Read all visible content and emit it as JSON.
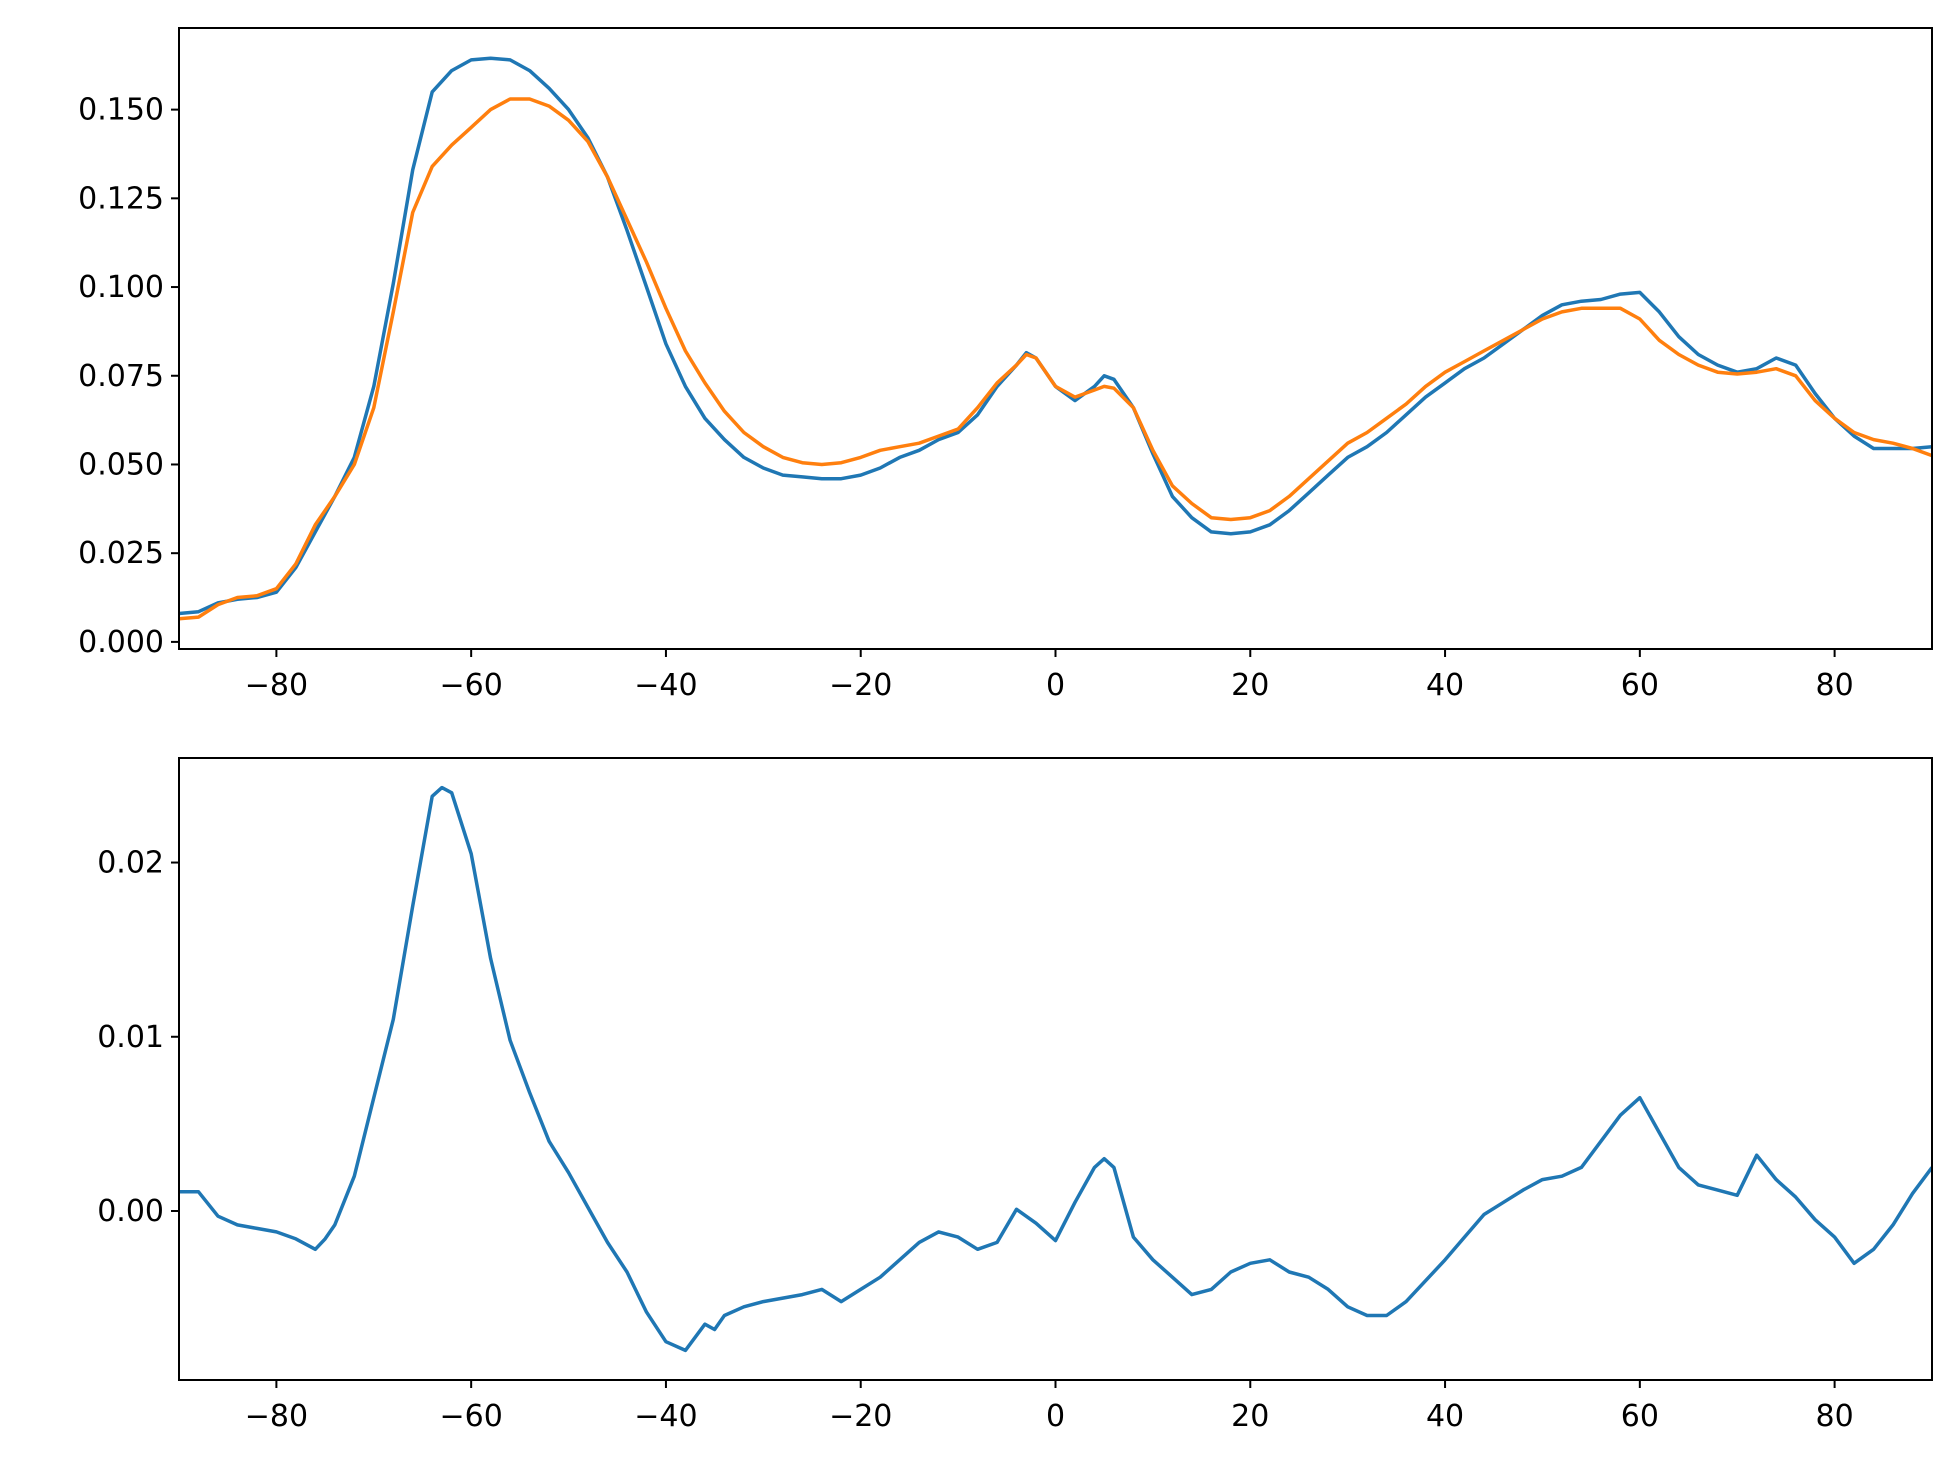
{
  "colors": {
    "series_1": "#1f77b4",
    "series_2": "#ff7f0e"
  },
  "chart_data": [
    {
      "type": "line",
      "title": "",
      "xlabel": "",
      "ylabel": "",
      "xlim": [
        -90,
        90
      ],
      "ylim": [
        -0.002,
        0.173
      ],
      "grid": false,
      "legend": "none",
      "x_ticks": [
        -80,
        -60,
        -40,
        -20,
        0,
        20,
        40,
        60,
        80
      ],
      "x_tick_labels": [
        "−80",
        "−60",
        "−40",
        "−20",
        "0",
        "20",
        "40",
        "60",
        "80"
      ],
      "y_ticks": [
        0.0,
        0.025,
        0.05,
        0.075,
        0.1,
        0.125,
        0.15
      ],
      "y_tick_labels": [
        "0.000",
        "0.025",
        "0.050",
        "0.075",
        "0.100",
        "0.125",
        "0.150"
      ],
      "series": [
        {
          "color": "#1f77b4",
          "x": [
            -90,
            -88,
            -86,
            -84,
            -82,
            -80,
            -78,
            -76,
            -74,
            -72,
            -70,
            -68,
            -66,
            -64,
            -62,
            -60,
            -58,
            -56,
            -54,
            -52,
            -50,
            -48,
            -46,
            -44,
            -42,
            -40,
            -38,
            -36,
            -34,
            -32,
            -30,
            -28,
            -26,
            -24,
            -22,
            -20,
            -18,
            -16,
            -14,
            -12,
            -10,
            -8,
            -6,
            -4,
            -3,
            -2,
            0,
            2,
            4,
            5,
            6,
            8,
            10,
            12,
            14,
            16,
            18,
            20,
            22,
            24,
            26,
            28,
            30,
            32,
            34,
            36,
            38,
            40,
            42,
            44,
            46,
            48,
            50,
            52,
            54,
            56,
            58,
            60,
            62,
            64,
            66,
            68,
            70,
            72,
            74,
            76,
            78,
            80,
            82,
            84,
            86,
            88,
            90
          ],
          "y": [
            0.008,
            0.0085,
            0.011,
            0.012,
            0.0125,
            0.014,
            0.021,
            0.031,
            0.041,
            0.052,
            0.072,
            0.101,
            0.133,
            0.155,
            0.161,
            0.164,
            0.1645,
            0.164,
            0.161,
            0.156,
            0.15,
            0.142,
            0.131,
            0.116,
            0.1,
            0.084,
            0.072,
            0.063,
            0.057,
            0.052,
            0.049,
            0.047,
            0.0465,
            0.046,
            0.046,
            0.047,
            0.049,
            0.052,
            0.054,
            0.057,
            0.059,
            0.064,
            0.072,
            0.078,
            0.0815,
            0.08,
            0.072,
            0.068,
            0.072,
            0.075,
            0.074,
            0.066,
            0.053,
            0.041,
            0.035,
            0.031,
            0.0305,
            0.031,
            0.033,
            0.037,
            0.042,
            0.047,
            0.052,
            0.055,
            0.059,
            0.064,
            0.069,
            0.073,
            0.077,
            0.08,
            0.084,
            0.088,
            0.092,
            0.095,
            0.096,
            0.0965,
            0.098,
            0.0985,
            0.093,
            0.086,
            0.081,
            0.078,
            0.076,
            0.077,
            0.08,
            0.078,
            0.07,
            0.063,
            0.058,
            0.0545,
            0.0545,
            0.0545,
            0.055
          ]
        },
        {
          "color": "#ff7f0e",
          "x": [
            -90,
            -88,
            -86,
            -84,
            -82,
            -80,
            -78,
            -76,
            -74,
            -72,
            -70,
            -68,
            -66,
            -64,
            -62,
            -60,
            -58,
            -56,
            -54,
            -52,
            -50,
            -48,
            -46,
            -44,
            -42,
            -40,
            -38,
            -36,
            -34,
            -32,
            -30,
            -28,
            -26,
            -24,
            -22,
            -20,
            -18,
            -16,
            -14,
            -12,
            -10,
            -8,
            -6,
            -4,
            -3,
            -2,
            0,
            2,
            4,
            5,
            6,
            8,
            10,
            12,
            14,
            16,
            18,
            20,
            22,
            24,
            26,
            28,
            30,
            32,
            34,
            36,
            38,
            40,
            42,
            44,
            46,
            48,
            50,
            52,
            54,
            56,
            58,
            60,
            62,
            64,
            66,
            68,
            70,
            72,
            74,
            76,
            78,
            80,
            82,
            84,
            86,
            88,
            90
          ],
          "y": [
            0.0065,
            0.007,
            0.0105,
            0.0125,
            0.013,
            0.015,
            0.022,
            0.033,
            0.041,
            0.05,
            0.066,
            0.093,
            0.121,
            0.134,
            0.14,
            0.145,
            0.15,
            0.153,
            0.153,
            0.151,
            0.147,
            0.141,
            0.131,
            0.119,
            0.107,
            0.094,
            0.082,
            0.073,
            0.065,
            0.059,
            0.055,
            0.052,
            0.0505,
            0.05,
            0.0505,
            0.052,
            0.054,
            0.055,
            0.056,
            0.058,
            0.06,
            0.066,
            0.073,
            0.078,
            0.081,
            0.08,
            0.072,
            0.069,
            0.071,
            0.072,
            0.0715,
            0.066,
            0.054,
            0.044,
            0.039,
            0.035,
            0.0345,
            0.035,
            0.037,
            0.041,
            0.046,
            0.051,
            0.056,
            0.059,
            0.063,
            0.067,
            0.072,
            0.076,
            0.079,
            0.082,
            0.085,
            0.088,
            0.091,
            0.093,
            0.094,
            0.094,
            0.094,
            0.091,
            0.085,
            0.081,
            0.078,
            0.076,
            0.0755,
            0.076,
            0.077,
            0.075,
            0.068,
            0.063,
            0.059,
            0.057,
            0.056,
            0.0545,
            0.0525
          ]
        }
      ]
    },
    {
      "type": "line",
      "title": "",
      "xlabel": "",
      "ylabel": "",
      "xlim": [
        -90,
        90
      ],
      "ylim": [
        -0.0097,
        0.026
      ],
      "grid": false,
      "legend": "none",
      "x_ticks": [
        -80,
        -60,
        -40,
        -20,
        0,
        20,
        40,
        60,
        80
      ],
      "x_tick_labels": [
        "−80",
        "−60",
        "−40",
        "−20",
        "0",
        "20",
        "40",
        "60",
        "80"
      ],
      "y_ticks": [
        0.0,
        0.01,
        0.02
      ],
      "y_tick_labels": [
        "0.00",
        "0.01",
        "0.02"
      ],
      "series": [
        {
          "color": "#1f77b4",
          "x": [
            -90,
            -88,
            -86,
            -84,
            -82,
            -80,
            -78,
            -76,
            -75,
            -74,
            -72,
            -70,
            -68,
            -66,
            -64,
            -63,
            -62,
            -60,
            -58,
            -56,
            -54,
            -52,
            -50,
            -48,
            -46,
            -44,
            -42,
            -40,
            -38,
            -36,
            -35,
            -34,
            -32,
            -30,
            -28,
            -26,
            -24,
            -22,
            -20,
            -18,
            -16,
            -14,
            -12,
            -10,
            -8,
            -6,
            -4,
            -2,
            0,
            2,
            4,
            5,
            6,
            8,
            10,
            12,
            14,
            16,
            18,
            20,
            22,
            24,
            26,
            28,
            30,
            32,
            34,
            36,
            38,
            40,
            42,
            44,
            46,
            48,
            50,
            52,
            54,
            56,
            58,
            60,
            62,
            64,
            66,
            68,
            70,
            72,
            74,
            76,
            78,
            80,
            82,
            84,
            86,
            88,
            90
          ],
          "y": [
            0.0011,
            0.0011,
            -0.0003,
            -0.0008,
            -0.001,
            -0.0012,
            -0.0016,
            -0.0022,
            -0.0016,
            -0.0008,
            0.002,
            0.0065,
            0.011,
            0.0175,
            0.0238,
            0.0243,
            0.024,
            0.0205,
            0.0145,
            0.0098,
            0.0068,
            0.004,
            0.0022,
            0.0002,
            -0.0018,
            -0.0035,
            -0.0058,
            -0.0075,
            -0.008,
            -0.0065,
            -0.0068,
            -0.006,
            -0.0055,
            -0.0052,
            -0.005,
            -0.0048,
            -0.0045,
            -0.0052,
            -0.0045,
            -0.0038,
            -0.0028,
            -0.0018,
            -0.0012,
            -0.0015,
            -0.0022,
            -0.0018,
            0.0001,
            -0.0007,
            -0.0017,
            0.0005,
            0.0025,
            0.003,
            0.0025,
            -0.0015,
            -0.0028,
            -0.0038,
            -0.0048,
            -0.0045,
            -0.0035,
            -0.003,
            -0.0028,
            -0.0035,
            -0.0038,
            -0.0045,
            -0.0055,
            -0.006,
            -0.006,
            -0.0052,
            -0.004,
            -0.0028,
            -0.0015,
            -0.0002,
            0.0005,
            0.0012,
            0.0018,
            0.002,
            0.0025,
            0.004,
            0.0055,
            0.0065,
            0.0045,
            0.0025,
            0.0015,
            0.0012,
            0.0009,
            0.0032,
            0.0018,
            0.0008,
            -0.0005,
            -0.0015,
            -0.003,
            -0.0022,
            -0.0008,
            0.001,
            0.0025
          ]
        }
      ]
    }
  ]
}
